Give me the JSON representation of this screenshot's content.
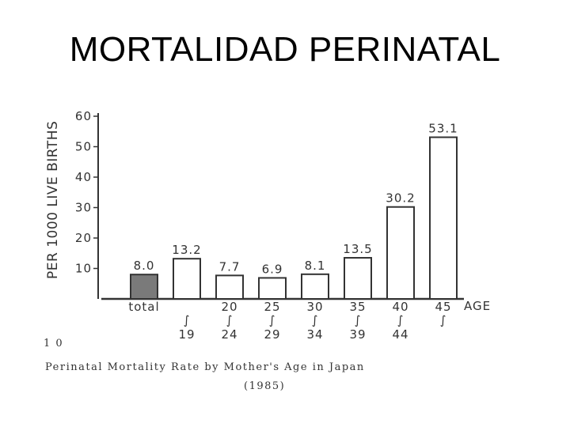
{
  "slide": {
    "title": "MORTALIDAD PERINATAL"
  },
  "chart_data": {
    "type": "bar",
    "ylabel": "PER 1000 LIVE BIRTHS",
    "xlabel": "AGE",
    "ylim": [
      0,
      60
    ],
    "yticks": [
      10,
      20,
      30,
      40,
      50,
      60
    ],
    "categories": [
      {
        "top": "total",
        "bottom": ""
      },
      {
        "top": "",
        "bottom": "19"
      },
      {
        "top": "20",
        "bottom": "24"
      },
      {
        "top": "25",
        "bottom": "29"
      },
      {
        "top": "30",
        "bottom": "34"
      },
      {
        "top": "35",
        "bottom": "39"
      },
      {
        "top": "40",
        "bottom": "44"
      },
      {
        "top": "45",
        "bottom": ""
      }
    ],
    "values": [
      8.0,
      13.2,
      7.7,
      6.9,
      8.1,
      13.5,
      30.2,
      53.1
    ],
    "value_labels": [
      "8.0",
      "13.2",
      "7.7",
      "6.9",
      "8.1",
      "13.5",
      "30.2",
      "53.1"
    ],
    "range_marker": "∫",
    "figure_number": "1 0",
    "caption": "Perinatal Mortality Rate by Mother's Age in Japan",
    "caption_year": "(1985)",
    "colors": {
      "ink": "#333333",
      "total_fill": "#7a7a7a",
      "bar_fill": "#ffffff"
    }
  }
}
